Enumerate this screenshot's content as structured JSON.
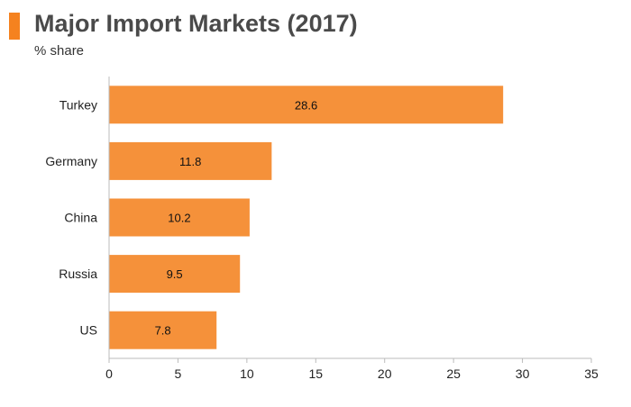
{
  "header": {
    "title": "Major Import Markets (2017)",
    "subtitle": "% share",
    "accent_color": "#f5821f"
  },
  "chart_data": {
    "type": "bar",
    "orientation": "horizontal",
    "categories": [
      "Turkey",
      "Germany",
      "China",
      "Russia",
      "US"
    ],
    "values": [
      28.6,
      11.8,
      10.2,
      9.5,
      7.8
    ],
    "data_labels": [
      "28.6",
      "11.8",
      "10.2",
      "9.5",
      "7.8"
    ],
    "title": "Major Import Markets (2017)",
    "subtitle": "% share",
    "xlabel": "",
    "ylabel": "",
    "xlim": [
      0,
      35
    ],
    "xticks": [
      0,
      5,
      10,
      15,
      20,
      25,
      30,
      35
    ],
    "grid": false,
    "bar_color": "#f5913a",
    "axis_color": "#bbbbbb"
  }
}
